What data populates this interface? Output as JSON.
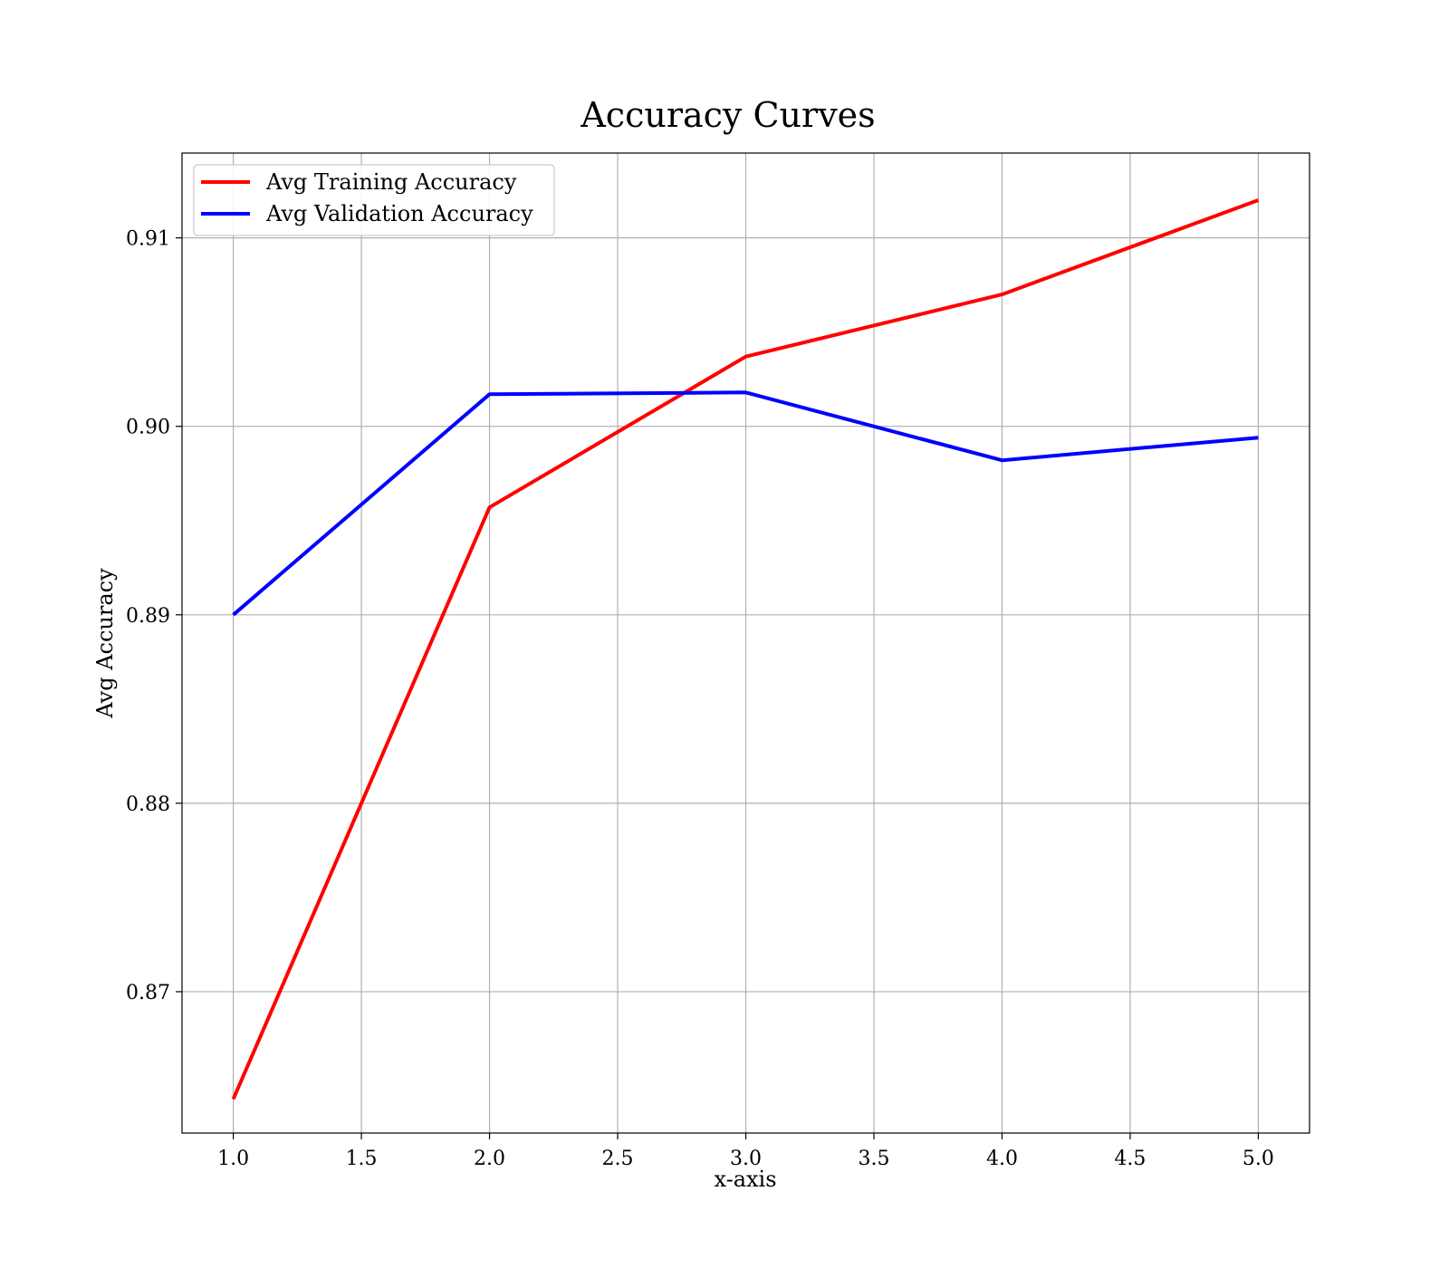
{
  "chart_data": {
    "type": "line",
    "title": "Accuracy Curves",
    "xlabel": "x-axis",
    "ylabel": "Avg Accuracy",
    "x": [
      1.0,
      2.0,
      3.0,
      4.0,
      5.0
    ],
    "xlim": [
      0.8,
      5.2
    ],
    "ylim": [
      0.8625,
      0.9145
    ],
    "xticks": [
      1.0,
      1.5,
      2.0,
      2.5,
      3.0,
      3.5,
      4.0,
      4.5,
      5.0
    ],
    "xtick_labels": [
      "1.0",
      "1.5",
      "2.0",
      "2.5",
      "3.0",
      "3.5",
      "4.0",
      "4.5",
      "5.0"
    ],
    "yticks": [
      0.87,
      0.88,
      0.89,
      0.9,
      0.91
    ],
    "ytick_labels": [
      "0.87",
      "0.88",
      "0.89",
      "0.90",
      "0.91"
    ],
    "grid": true,
    "legend_position": "top-left",
    "series": [
      {
        "name": "Avg Training Accuracy",
        "color": "#ff0000",
        "values": [
          0.8643,
          0.8957,
          0.9037,
          0.907,
          0.912
        ]
      },
      {
        "name": "Avg Validation Accuracy",
        "color": "#0000ff",
        "values": [
          0.89,
          0.9017,
          0.9018,
          0.8982,
          0.8994
        ]
      }
    ]
  }
}
